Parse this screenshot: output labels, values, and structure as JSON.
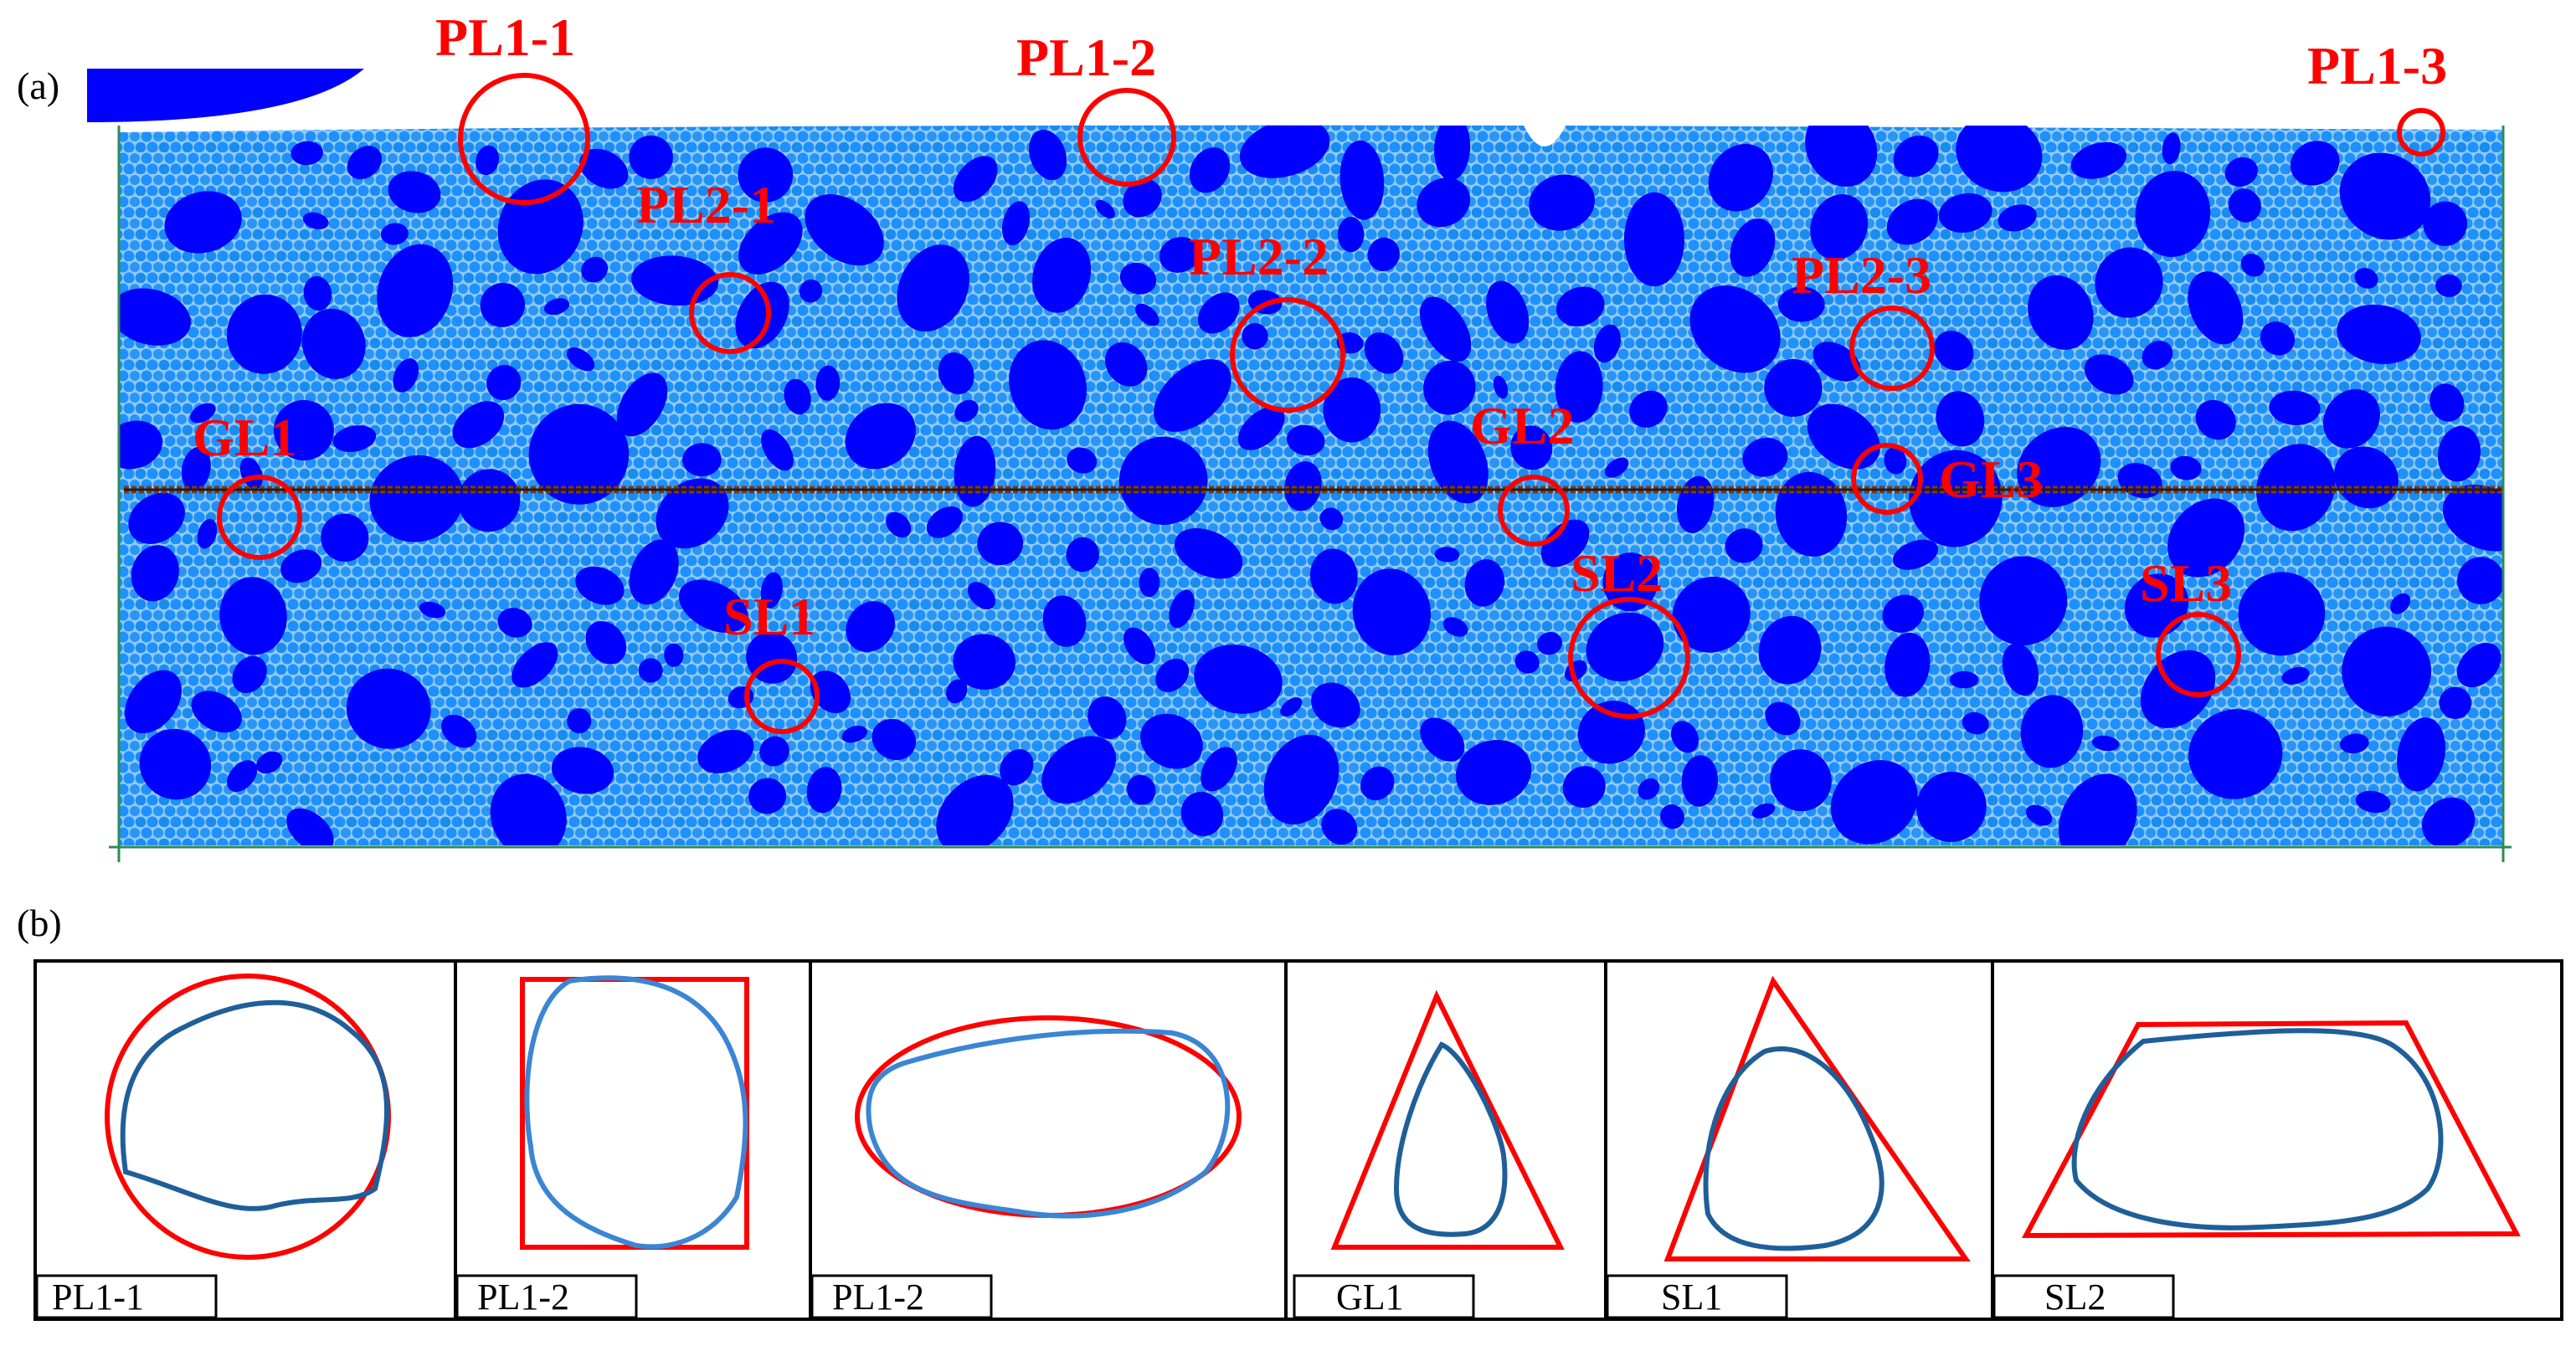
{
  "panel_a": {
    "letter": "(a)",
    "callouts": [
      {
        "id": "PL1-1",
        "label": "PL1-1"
      },
      {
        "id": "PL1-2",
        "label": "PL1-2"
      },
      {
        "id": "PL1-3",
        "label": "PL1-3"
      },
      {
        "id": "PL2-1",
        "label": "PL2-1"
      },
      {
        "id": "PL2-2",
        "label": "PL2-2"
      },
      {
        "id": "PL2-3",
        "label": "PL2-3"
      },
      {
        "id": "GL1",
        "label": "GL1"
      },
      {
        "id": "GL2",
        "label": "GL2"
      },
      {
        "id": "GL3",
        "label": "GL3"
      },
      {
        "id": "SL1",
        "label": "SL1"
      },
      {
        "id": "SL2",
        "label": "SL2"
      },
      {
        "id": "SL3",
        "label": "SL3"
      }
    ]
  },
  "panel_b": {
    "letter": "(b)",
    "shapes": [
      {
        "label": "PL1-1",
        "fit": "circle"
      },
      {
        "label": "PL1-2",
        "fit": "rectangle"
      },
      {
        "label": "PL1-2",
        "fit": "ellipse"
      },
      {
        "label": "GL1",
        "fit": "triangle"
      },
      {
        "label": "SL1",
        "fit": "triangle"
      },
      {
        "label": "SL2",
        "fit": "trapezoid"
      }
    ]
  },
  "colors": {
    "fine_particle": "#1e90ff",
    "coarse_particle": "#0000ff",
    "highlight": "#ff0000",
    "outline": "#1f5f99",
    "boundary": "#2e8b57",
    "interface": "#7a3a1a"
  }
}
